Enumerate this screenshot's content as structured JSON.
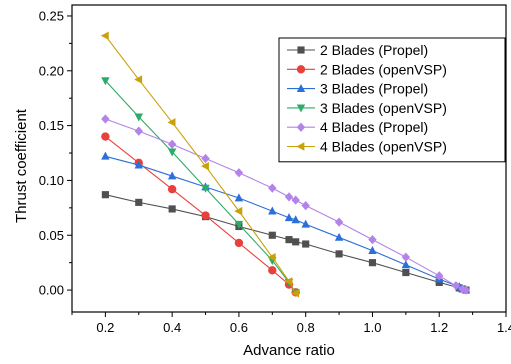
{
  "chart_data": {
    "type": "line",
    "title": "",
    "xlabel": "Advance ratio",
    "ylabel": "Thrust coefficient",
    "xlim": [
      0.1,
      1.4
    ],
    "ylim": [
      -0.02,
      0.26
    ],
    "x_ticks": [
      0.2,
      0.4,
      0.6,
      0.8,
      1.0,
      1.2,
      1.4
    ],
    "x_tick_labels": [
      "0.2",
      "0.4",
      "0.6",
      "0.8",
      "1.0",
      "1.2",
      "1.4"
    ],
    "y_ticks": [
      0.0,
      0.05,
      0.1,
      0.15,
      0.2,
      0.25
    ],
    "y_tick_labels": [
      "0.00",
      "0.05",
      "0.10",
      "0.15",
      "0.20",
      "0.25"
    ],
    "grid": false,
    "legend_position": "top-right",
    "series": [
      {
        "name": "2 Blades (Propel)",
        "color": "#505050",
        "marker": "square",
        "x": [
          0.2,
          0.3,
          0.4,
          0.5,
          0.6,
          0.7,
          0.75,
          0.77,
          0.8,
          0.9,
          1.0,
          1.1,
          1.2,
          1.26,
          1.27,
          1.28
        ],
        "y": [
          0.087,
          0.08,
          0.074,
          0.067,
          0.058,
          0.05,
          0.046,
          0.044,
          0.042,
          0.033,
          0.025,
          0.016,
          0.007,
          0.002,
          0.001,
          0.0
        ]
      },
      {
        "name": "2 Blades (openVSP)",
        "color": "#e8413c",
        "marker": "circle",
        "x": [
          0.2,
          0.3,
          0.4,
          0.5,
          0.6,
          0.7,
          0.75,
          0.77
        ],
        "y": [
          0.14,
          0.116,
          0.092,
          0.068,
          0.043,
          0.018,
          0.005,
          -0.002
        ]
      },
      {
        "name": "3 Blades (Propel)",
        "color": "#2b6fd9",
        "marker": "triangle-up",
        "x": [
          0.2,
          0.3,
          0.4,
          0.5,
          0.6,
          0.7,
          0.75,
          0.77,
          0.8,
          0.9,
          1.0,
          1.1,
          1.2,
          1.26,
          1.27,
          1.28
        ],
        "y": [
          0.122,
          0.114,
          0.104,
          0.094,
          0.084,
          0.072,
          0.066,
          0.064,
          0.06,
          0.048,
          0.036,
          0.023,
          0.01,
          0.003,
          0.001,
          0.0
        ]
      },
      {
        "name": "3 Blades (openVSP)",
        "color": "#2eab67",
        "marker": "triangle-down",
        "x": [
          0.2,
          0.3,
          0.4,
          0.5,
          0.6,
          0.7,
          0.75,
          0.77
        ],
        "y": [
          0.191,
          0.158,
          0.126,
          0.093,
          0.06,
          0.027,
          0.007,
          -0.002
        ]
      },
      {
        "name": "4 Blades (Propel)",
        "color": "#b383e8",
        "marker": "diamond",
        "x": [
          0.2,
          0.3,
          0.4,
          0.5,
          0.6,
          0.7,
          0.75,
          0.77,
          0.8,
          0.9,
          1.0,
          1.1,
          1.2,
          1.25,
          1.27,
          1.28
        ],
        "y": [
          0.156,
          0.145,
          0.133,
          0.12,
          0.107,
          0.093,
          0.085,
          0.082,
          0.077,
          0.062,
          0.046,
          0.03,
          0.013,
          0.004,
          0.001,
          0.0
        ]
      },
      {
        "name": "4 Blades (openVSP)",
        "color": "#c9a20a",
        "marker": "triangle-left",
        "x": [
          0.2,
          0.3,
          0.4,
          0.5,
          0.6,
          0.7,
          0.75,
          0.77
        ],
        "y": [
          0.232,
          0.192,
          0.153,
          0.113,
          0.072,
          0.03,
          0.008,
          -0.003
        ]
      }
    ]
  }
}
